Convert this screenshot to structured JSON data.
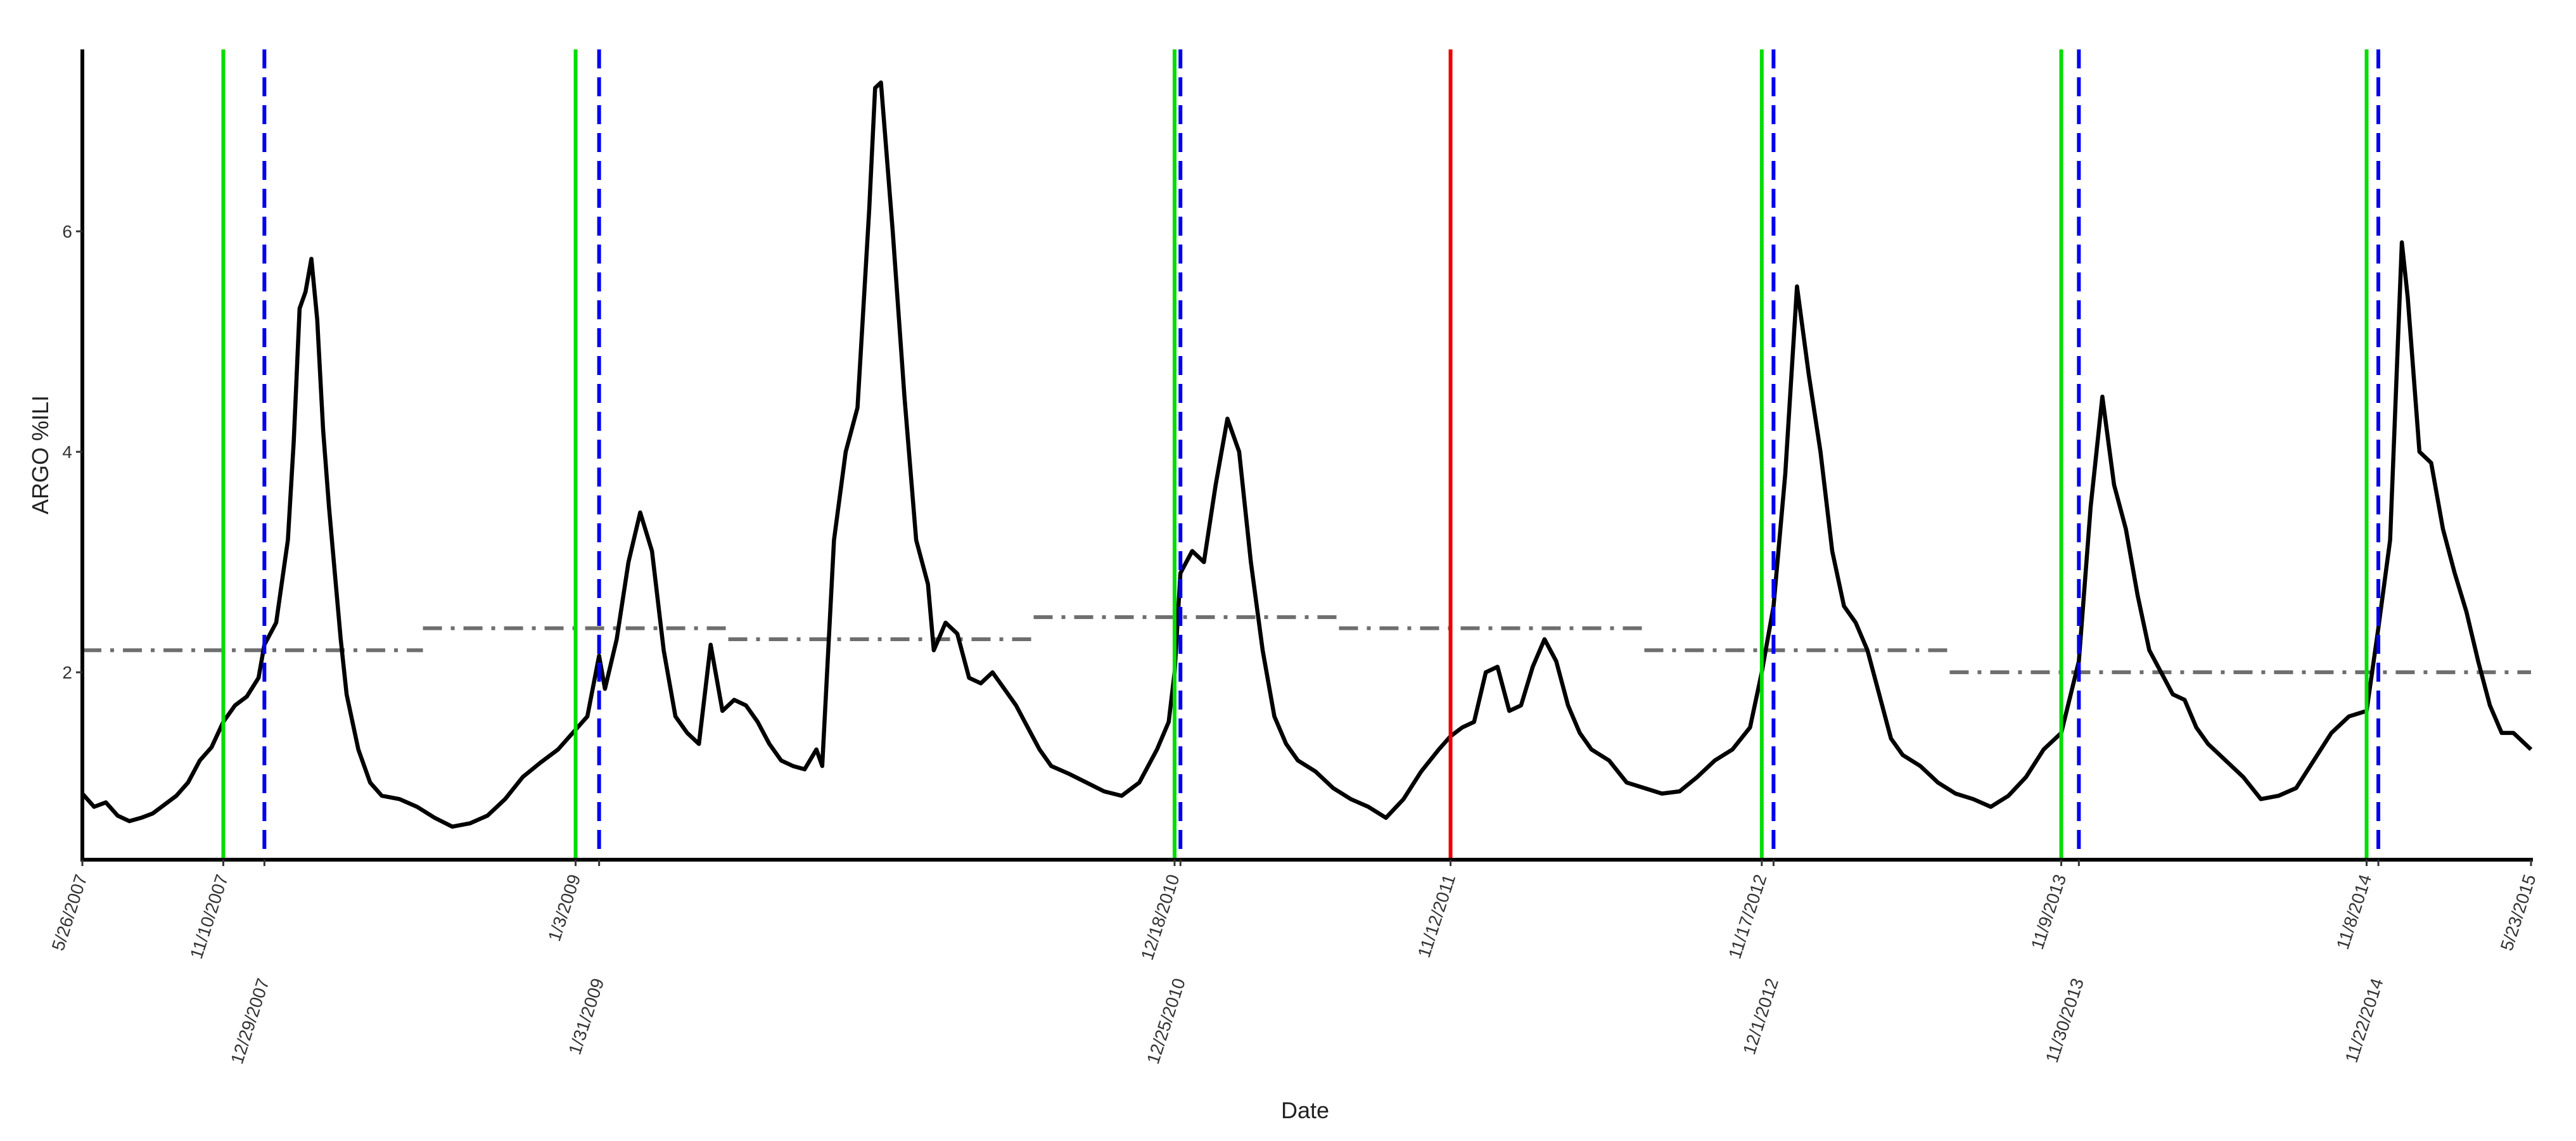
{
  "chart_data": {
    "type": "line",
    "xlabel": "Date",
    "ylabel": "ARGO %ILI",
    "x_range": [
      "5/26/2007",
      "5/23/2015"
    ],
    "ylim": [
      0.3,
      7.65
    ],
    "yticks": [
      2,
      4,
      6
    ],
    "grid": false,
    "series": [
      {
        "color": "#000000",
        "points": [
          [
            "5/26/2007",
            0.9
          ],
          [
            "6/9/2007",
            0.78
          ],
          [
            "6/23/2007",
            0.82
          ],
          [
            "7/7/2007",
            0.7
          ],
          [
            "7/21/2007",
            0.65
          ],
          [
            "8/4/2007",
            0.68
          ],
          [
            "8/18/2007",
            0.72
          ],
          [
            "9/1/2007",
            0.8
          ],
          [
            "9/15/2007",
            0.88
          ],
          [
            "9/29/2007",
            1.0
          ],
          [
            "10/13/2007",
            1.2
          ],
          [
            "10/27/2007",
            1.32
          ],
          [
            "11/10/2007",
            1.55
          ],
          [
            "11/24/2007",
            1.7
          ],
          [
            "12/8/2007",
            1.78
          ],
          [
            "12/22/2007",
            1.95
          ],
          [
            "12/29/2007",
            2.25
          ],
          [
            "1/12/2008",
            2.45
          ],
          [
            "1/26/2008",
            3.2
          ],
          [
            "2/2/2008",
            4.1
          ],
          [
            "2/9/2008",
            5.3
          ],
          [
            "2/16/2008",
            5.45
          ],
          [
            "2/23/2008",
            5.75
          ],
          [
            "3/1/2008",
            5.2
          ],
          [
            "3/8/2008",
            4.2
          ],
          [
            "3/15/2008",
            3.5
          ],
          [
            "3/22/2008",
            2.9
          ],
          [
            "3/29/2008",
            2.3
          ],
          [
            "4/5/2008",
            1.8
          ],
          [
            "4/19/2008",
            1.3
          ],
          [
            "5/3/2008",
            1.0
          ],
          [
            "5/17/2008",
            0.88
          ],
          [
            "6/7/2008",
            0.85
          ],
          [
            "6/28/2008",
            0.78
          ],
          [
            "7/19/2008",
            0.68
          ],
          [
            "8/9/2008",
            0.6
          ],
          [
            "8/30/2008",
            0.63
          ],
          [
            "9/20/2008",
            0.7
          ],
          [
            "10/11/2008",
            0.85
          ],
          [
            "11/1/2008",
            1.05
          ],
          [
            "11/22/2008",
            1.18
          ],
          [
            "12/13/2008",
            1.3
          ],
          [
            "1/3/2009",
            1.48
          ],
          [
            "1/17/2009",
            1.6
          ],
          [
            "1/31/2009",
            2.15
          ],
          [
            "2/7/2009",
            1.85
          ],
          [
            "2/21/2009",
            2.3
          ],
          [
            "3/7/2009",
            3.0
          ],
          [
            "3/21/2009",
            3.45
          ],
          [
            "4/4/2009",
            3.1
          ],
          [
            "4/18/2009",
            2.2
          ],
          [
            "5/2/2009",
            1.6
          ],
          [
            "5/16/2009",
            1.45
          ],
          [
            "5/30/2009",
            1.35
          ],
          [
            "6/13/2009",
            2.25
          ],
          [
            "6/27/2009",
            1.65
          ],
          [
            "7/11/2009",
            1.75
          ],
          [
            "7/25/2009",
            1.7
          ],
          [
            "8/8/2009",
            1.55
          ],
          [
            "8/22/2009",
            1.35
          ],
          [
            "9/5/2009",
            1.2
          ],
          [
            "9/19/2009",
            1.15
          ],
          [
            "10/3/2009",
            1.12
          ],
          [
            "10/17/2009",
            1.3
          ],
          [
            "10/24/2009",
            1.15
          ],
          [
            "11/7/2009",
            3.2
          ],
          [
            "11/21/2009",
            4.0
          ],
          [
            "12/5/2009",
            4.4
          ],
          [
            "12/19/2009",
            6.2
          ],
          [
            "12/26/2009",
            7.3
          ],
          [
            "1/2/2010",
            7.35
          ],
          [
            "1/16/2010",
            6.0
          ],
          [
            "1/30/2010",
            4.5
          ],
          [
            "2/13/2010",
            3.2
          ],
          [
            "2/27/2010",
            2.8
          ],
          [
            "3/6/2010",
            2.2
          ],
          [
            "3/20/2010",
            2.45
          ],
          [
            "4/3/2010",
            2.35
          ],
          [
            "4/17/2010",
            1.95
          ],
          [
            "5/1/2010",
            1.9
          ],
          [
            "5/15/2010",
            2.0
          ],
          [
            "5/29/2010",
            1.85
          ],
          [
            "6/12/2010",
            1.7
          ],
          [
            "6/26/2010",
            1.5
          ],
          [
            "7/10/2010",
            1.3
          ],
          [
            "7/24/2010",
            1.15
          ],
          [
            "8/14/2010",
            1.08
          ],
          [
            "9/4/2010",
            1.0
          ],
          [
            "9/25/2010",
            0.92
          ],
          [
            "10/16/2010",
            0.88
          ],
          [
            "11/6/2010",
            1.0
          ],
          [
            "11/27/2010",
            1.3
          ],
          [
            "12/11/2010",
            1.55
          ],
          [
            "12/18/2010",
            2.0
          ],
          [
            "12/25/2010",
            2.9
          ],
          [
            "1/8/2011",
            3.1
          ],
          [
            "1/22/2011",
            3.0
          ],
          [
            "2/5/2011",
            3.7
          ],
          [
            "2/19/2011",
            4.3
          ],
          [
            "3/5/2011",
            4.0
          ],
          [
            "3/19/2011",
            3.0
          ],
          [
            "4/2/2011",
            2.2
          ],
          [
            "4/16/2011",
            1.6
          ],
          [
            "4/30/2011",
            1.35
          ],
          [
            "5/14/2011",
            1.2
          ],
          [
            "6/4/2011",
            1.1
          ],
          [
            "6/25/2011",
            0.95
          ],
          [
            "7/16/2011",
            0.85
          ],
          [
            "8/6/2011",
            0.78
          ],
          [
            "8/27/2011",
            0.68
          ],
          [
            "9/17/2011",
            0.85
          ],
          [
            "10/8/2011",
            1.1
          ],
          [
            "10/29/2011",
            1.3
          ],
          [
            "11/12/2011",
            1.42
          ],
          [
            "11/26/2011",
            1.5
          ],
          [
            "12/10/2011",
            1.55
          ],
          [
            "12/24/2011",
            2.0
          ],
          [
            "1/7/2012",
            2.05
          ],
          [
            "1/21/2012",
            1.65
          ],
          [
            "2/4/2012",
            1.7
          ],
          [
            "2/18/2012",
            2.05
          ],
          [
            "3/3/2012",
            2.3
          ],
          [
            "3/17/2012",
            2.1
          ],
          [
            "3/31/2012",
            1.7
          ],
          [
            "4/14/2012",
            1.45
          ],
          [
            "4/28/2012",
            1.3
          ],
          [
            "5/19/2012",
            1.2
          ],
          [
            "6/9/2012",
            1.0
          ],
          [
            "6/30/2012",
            0.95
          ],
          [
            "7/21/2012",
            0.9
          ],
          [
            "8/11/2012",
            0.92
          ],
          [
            "9/1/2012",
            1.05
          ],
          [
            "9/22/2012",
            1.2
          ],
          [
            "10/13/2012",
            1.3
          ],
          [
            "11/3/2012",
            1.5
          ],
          [
            "11/17/2012",
            2.0
          ],
          [
            "12/1/2012",
            2.6
          ],
          [
            "12/15/2012",
            3.8
          ],
          [
            "12/29/2012",
            5.5
          ],
          [
            "1/12/2013",
            4.7
          ],
          [
            "1/26/2013",
            4.0
          ],
          [
            "2/9/2013",
            3.1
          ],
          [
            "2/23/2013",
            2.6
          ],
          [
            "3/9/2013",
            2.45
          ],
          [
            "3/23/2013",
            2.2
          ],
          [
            "4/6/2013",
            1.8
          ],
          [
            "4/20/2013",
            1.4
          ],
          [
            "5/4/2013",
            1.25
          ],
          [
            "5/25/2013",
            1.15
          ],
          [
            "6/15/2013",
            1.0
          ],
          [
            "7/6/2013",
            0.9
          ],
          [
            "7/27/2013",
            0.85
          ],
          [
            "8/17/2013",
            0.78
          ],
          [
            "9/7/2013",
            0.88
          ],
          [
            "9/28/2013",
            1.05
          ],
          [
            "10/19/2013",
            1.3
          ],
          [
            "11/9/2013",
            1.45
          ],
          [
            "11/30/2013",
            2.1
          ],
          [
            "12/14/2013",
            3.5
          ],
          [
            "12/28/2013",
            4.5
          ],
          [
            "1/11/2014",
            3.7
          ],
          [
            "1/25/2014",
            3.3
          ],
          [
            "2/8/2014",
            2.7
          ],
          [
            "2/22/2014",
            2.2
          ],
          [
            "3/8/2014",
            2.0
          ],
          [
            "3/22/2014",
            1.8
          ],
          [
            "4/5/2014",
            1.75
          ],
          [
            "4/19/2014",
            1.5
          ],
          [
            "5/3/2014",
            1.35
          ],
          [
            "5/24/2014",
            1.2
          ],
          [
            "6/14/2014",
            1.05
          ],
          [
            "7/5/2014",
            0.85
          ],
          [
            "7/26/2014",
            0.88
          ],
          [
            "8/16/2014",
            0.95
          ],
          [
            "9/6/2014",
            1.2
          ],
          [
            "9/27/2014",
            1.45
          ],
          [
            "10/18/2014",
            1.6
          ],
          [
            "11/8/2014",
            1.65
          ],
          [
            "11/22/2014",
            2.4
          ],
          [
            "12/6/2014",
            3.2
          ],
          [
            "12/20/2014",
            5.9
          ],
          [
            "12/27/2014",
            5.4
          ],
          [
            "1/10/2015",
            4.0
          ],
          [
            "1/24/2015",
            3.9
          ],
          [
            "2/7/2015",
            3.3
          ],
          [
            "2/21/2015",
            2.9
          ],
          [
            "3/7/2015",
            2.55
          ],
          [
            "3/21/2015",
            2.1
          ],
          [
            "4/4/2015",
            1.7
          ],
          [
            "4/18/2015",
            1.45
          ],
          [
            "5/2/2015",
            1.45
          ],
          [
            "5/23/2015",
            1.3
          ]
        ]
      }
    ],
    "thresholds": [
      {
        "color": "#6e6e6e",
        "start": "5/26/2007",
        "end": "7/5/2008",
        "value": 2.2
      },
      {
        "color": "#6e6e6e",
        "start": "7/5/2008",
        "end": "7/4/2009",
        "value": 2.4
      },
      {
        "color": "#6e6e6e",
        "start": "7/4/2009",
        "end": "7/3/2010",
        "value": 2.3
      },
      {
        "color": "#6e6e6e",
        "start": "7/3/2010",
        "end": "7/2/2011",
        "value": 2.5
      },
      {
        "color": "#6e6e6e",
        "start": "7/2/2011",
        "end": "6/30/2012",
        "value": 2.4
      },
      {
        "color": "#6e6e6e",
        "start": "6/30/2012",
        "end": "6/29/2013",
        "value": 2.2
      },
      {
        "color": "#6e6e6e",
        "start": "6/29/2013",
        "end": "5/23/2015",
        "value": 2.0
      }
    ],
    "vertical_lines": [
      {
        "date": "11/10/2007",
        "color": "#00dd00",
        "style": "solid"
      },
      {
        "date": "12/29/2007",
        "color": "#0000ee",
        "style": "dashed"
      },
      {
        "date": "1/3/2009",
        "color": "#00dd00",
        "style": "solid"
      },
      {
        "date": "1/31/2009",
        "color": "#0000ee",
        "style": "dashed"
      },
      {
        "date": "12/18/2010",
        "color": "#00dd00",
        "style": "solid"
      },
      {
        "date": "12/25/2010",
        "color": "#0000ee",
        "style": "dashed"
      },
      {
        "date": "11/12/2011",
        "color": "#ee0000",
        "style": "solid"
      },
      {
        "date": "11/17/2012",
        "color": "#00dd00",
        "style": "solid"
      },
      {
        "date": "12/1/2012",
        "color": "#0000ee",
        "style": "dashed"
      },
      {
        "date": "11/9/2013",
        "color": "#00dd00",
        "style": "solid"
      },
      {
        "date": "11/30/2013",
        "color": "#0000ee",
        "style": "dashed"
      },
      {
        "date": "11/8/2014",
        "color": "#00dd00",
        "style": "solid"
      },
      {
        "date": "11/22/2014",
        "color": "#0000ee",
        "style": "dashed"
      }
    ],
    "xticks_row1": [
      "5/26/2007",
      "11/10/2007",
      "1/3/2009",
      "12/18/2010",
      "11/12/2011",
      "11/17/2012",
      "11/9/2013",
      "11/8/2014",
      "5/23/2015"
    ],
    "xticks_row2": [
      "12/29/2007",
      "1/31/2009",
      "12/25/2010",
      "12/1/2012",
      "11/30/2013",
      "11/22/2014"
    ]
  }
}
